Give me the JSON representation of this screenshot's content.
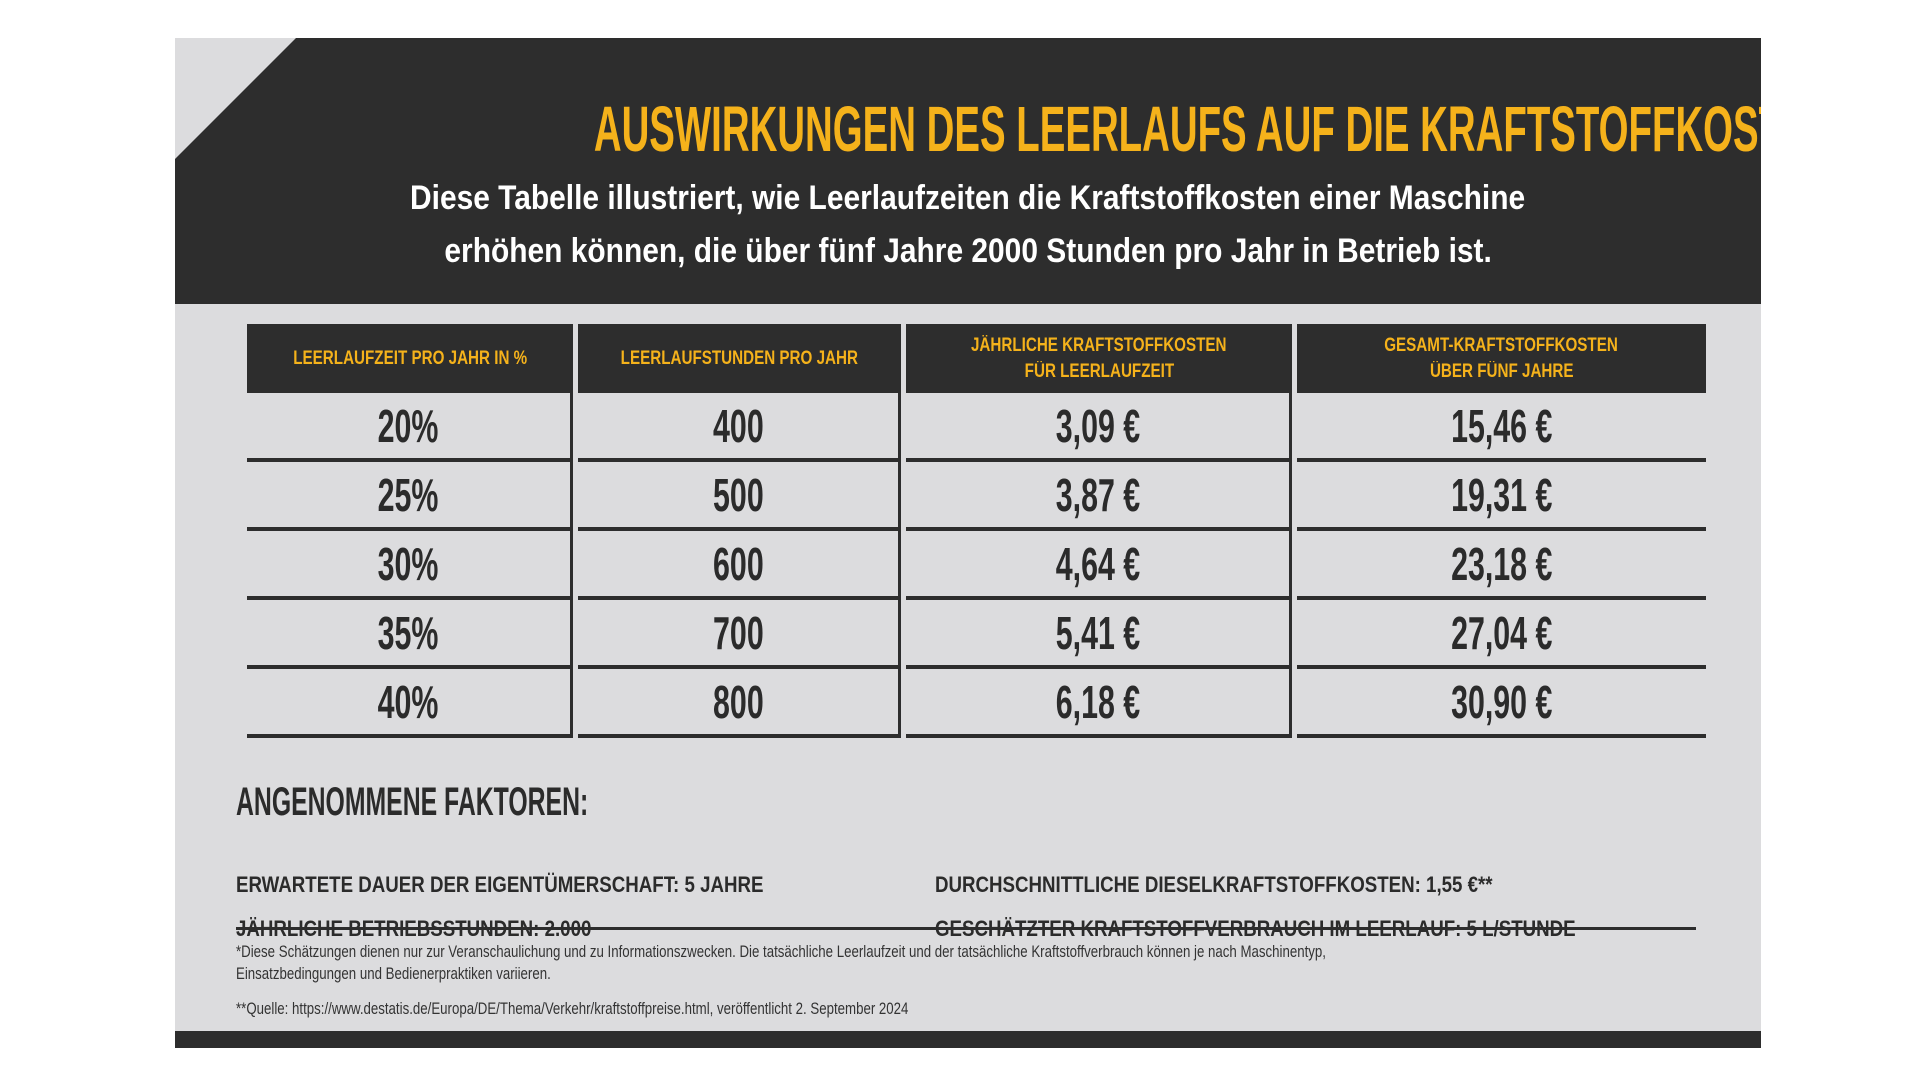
{
  "header": {
    "title": "AUSWIRKUNGEN DES LEERLAUFS AUF DIE KRAFTSTOFFKOSTEN*",
    "subtitle_line1": "Diese Tabelle illustriert, wie Leerlaufzeiten die Kraftstoffkosten einer Maschine",
    "subtitle_line2": "erhöhen können, die über fünf Jahre 2000 Stunden pro Jahr in Betrieb ist."
  },
  "colors": {
    "accent": "#f5b21b",
    "dark": "#2d2d2d",
    "background": "#dcdcde"
  },
  "table": {
    "headers": [
      [
        "LEERLAUFZEIT PRO JAHR IN %",
        ""
      ],
      [
        "LEERLAUFSTUNDEN PRO JAHR",
        ""
      ],
      [
        "JÄHRLICHE KRAFTSTOFFKOSTEN",
        "FÜR LEERLAUFZEIT"
      ],
      [
        "GESAMT-KRAFTSTOFFKOSTEN",
        "ÜBER FÜNF JAHRE"
      ]
    ],
    "rows": [
      [
        "20%",
        "400",
        "3,09 €",
        "15,46 €"
      ],
      [
        "25%",
        "500",
        "3,87 €",
        "19,31 €"
      ],
      [
        "30%",
        "600",
        "4,64 €",
        "23,18 €"
      ],
      [
        "35%",
        "700",
        "5,41 €",
        "27,04 €"
      ],
      [
        "40%",
        "800",
        "6,18 €",
        "30,90 €"
      ]
    ]
  },
  "factors": {
    "heading": "ANGENOMMENE FAKTOREN:",
    "items": [
      "ERWARTETE DAUER DER EIGENTÜMERSCHAFT: 5 JAHRE",
      "DURCHSCHNITTLICHE DIESELKRAFTSTOFFKOSTEN: 1,55 €**",
      "JÄHRLICHE BETRIEBSSTUNDEN: 2.000",
      "GESCHÄTZTER KRAFTSTOFFVERBRAUCH IM LEERLAUF: 5 L/STUNDE"
    ]
  },
  "footnotes": {
    "note1_line1": "*Diese Schätzungen dienen nur zur Veranschaulichung und zu Informationszwecken. Die tatsächliche Leerlaufzeit und der tatsächliche Kraftstoffverbrauch können je nach Maschinentyp,",
    "note1_line2": " Einsatzbedingungen und Bedienerpraktiken variieren.",
    "note2": "**Quelle: https://www.destatis.de/Europa/DE/Thema/Verkehr/kraftstoffpreise.html, veröffentlicht 2. September 2024"
  }
}
